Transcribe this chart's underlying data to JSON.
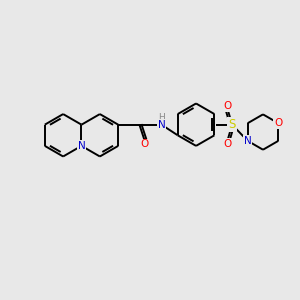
{
  "background_color": "#e8e8e8",
  "bond_color": "#000000",
  "atom_colors": {
    "N": "#0000cc",
    "O": "#ff0000",
    "S": "#cccc00",
    "H": "#aaaaaa"
  },
  "figsize": [
    3.0,
    3.0
  ],
  "dpi": 100,
  "xlim": [
    0,
    10
  ],
  "ylim": [
    0,
    10
  ]
}
